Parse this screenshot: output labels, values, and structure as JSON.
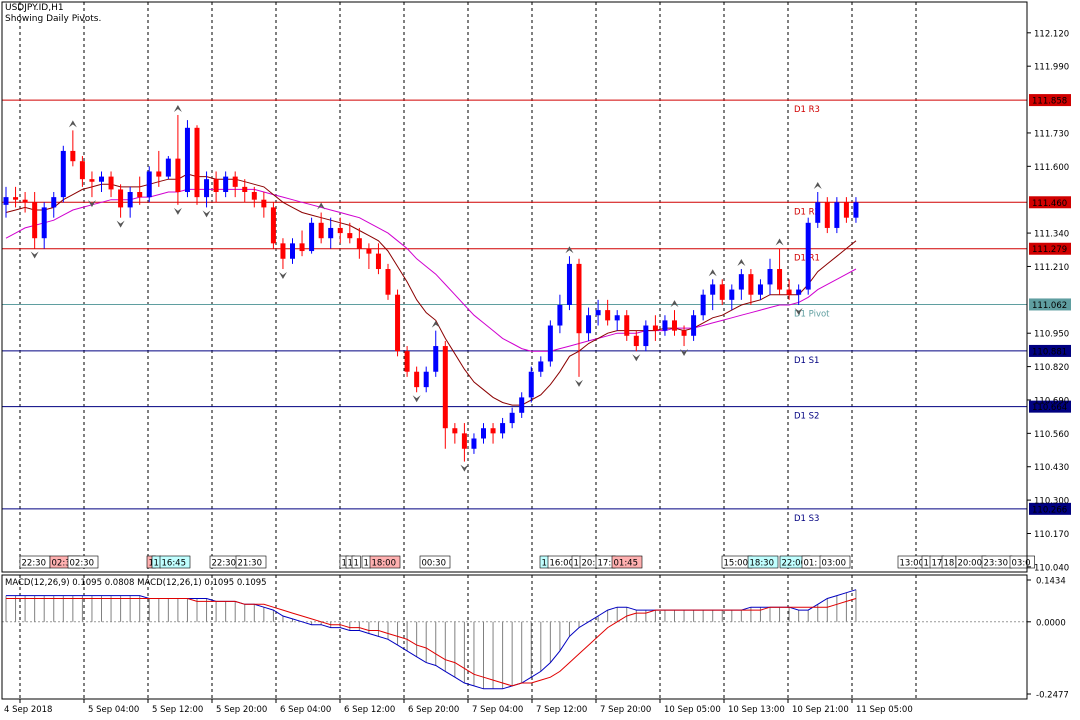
{
  "header": {
    "symbol": "USDJPY.ID,H1",
    "subtitle": "Showing Daily Pivots."
  },
  "colors": {
    "bull": "#0000ff",
    "bear": "#ff0000",
    "ma_fast": "#8b0000",
    "ma_slow": "#d000d0",
    "resistance": "#d00000",
    "support": "#000080",
    "pivot": "#5f9ea0",
    "grid": "#000000",
    "macd_hist": "#808080",
    "macd_signal": "#e00000",
    "macd_main": "#0000c0"
  },
  "chart_data": [
    {
      "type": "candlestick",
      "symbol": "USDJPY.ID",
      "timeframe": "H1",
      "ylim": [
        110.02,
        112.24
      ],
      "y_ticks": [
        112.12,
        111.99,
        111.73,
        111.6,
        111.34,
        111.21,
        110.95,
        110.82,
        110.69,
        110.56,
        110.43,
        110.3,
        110.17,
        110.04
      ],
      "x_tick_labels": [
        "4 Sep 2018",
        "5 Sep 04:00",
        "5 Sep 12:00",
        "5 Sep 20:00",
        "6 Sep 04:00",
        "6 Sep 12:00",
        "6 Sep 20:00",
        "7 Sep 04:00",
        "7 Sep 12:00",
        "7 Sep 20:00",
        "10 Sep 05:00",
        "10 Sep 13:00",
        "10 Sep 21:00",
        "11 Sep 05:00"
      ],
      "pivots": [
        {
          "name": "D1 R3",
          "value": 111.858,
          "label": "111.858",
          "kind": "resistance"
        },
        {
          "name": "D1 R2",
          "value": 111.46,
          "label": "111.460",
          "kind": "resistance"
        },
        {
          "name": "D1 R1",
          "value": 111.279,
          "label": "111.279",
          "kind": "resistance"
        },
        {
          "name": "D1 Pivot",
          "value": 111.062,
          "label": "111.062",
          "kind": "pivot"
        },
        {
          "name": "D1 S1",
          "value": 110.881,
          "label": "110.881",
          "kind": "support"
        },
        {
          "name": "D1 S2",
          "value": 110.664,
          "label": "110.664",
          "kind": "support"
        },
        {
          "name": "D1 S3",
          "value": 110.266,
          "label": "110.266",
          "kind": "support"
        }
      ],
      "session_labels": [
        {
          "text": "22:30",
          "color": "#ffffff"
        },
        {
          "text": "02:30",
          "color": "#ffb0b0"
        },
        {
          "text": "02:30",
          "color": "#ffffff"
        },
        {
          "text": "1",
          "color": "#ffb0b0"
        },
        {
          "text": "1",
          "color": "#c0ffff"
        },
        {
          "text": "16:45",
          "color": "#c0ffff"
        },
        {
          "text": "22:30",
          "color": "#ffffff"
        },
        {
          "text": "21:30",
          "color": "#ffffff"
        },
        {
          "text": "1",
          "color": "#ffffff"
        },
        {
          "text": "1",
          "color": "#ffffff"
        },
        {
          "text": "1",
          "color": "#ffffff"
        },
        {
          "text": "1",
          "color": "#ffffff"
        },
        {
          "text": "18:00",
          "color": "#ffb0b0"
        },
        {
          "text": "00:30",
          "color": "#ffffff"
        },
        {
          "text": "1",
          "color": "#c0ffff"
        },
        {
          "text": "16:00",
          "color": "#ffffff"
        },
        {
          "text": "1",
          "color": "#ffffff"
        },
        {
          "text": "20:",
          "color": "#ffffff"
        },
        {
          "text": "17:",
          "color": "#ffffff"
        },
        {
          "text": "01:45",
          "color": "#ffb0b0"
        },
        {
          "text": "15:00",
          "color": "#ffffff"
        },
        {
          "text": "18:30",
          "color": "#c0ffff"
        },
        {
          "text": "22:00",
          "color": "#c0ffff"
        },
        {
          "text": "01:",
          "color": "#ffffff"
        },
        {
          "text": "03:00",
          "color": "#ffffff"
        },
        {
          "text": "13:00",
          "color": "#ffffff"
        },
        {
          "text": "1",
          "color": "#ffffff"
        },
        {
          "text": "17",
          "color": "#ffffff"
        },
        {
          "text": "18",
          "color": "#ffffff"
        },
        {
          "text": "20:00",
          "color": "#ffffff"
        },
        {
          "text": "23:30",
          "color": "#ffffff"
        },
        {
          "text": "03:0",
          "color": "#ffffff"
        }
      ],
      "candles": [
        [
          111.45,
          111.52,
          111.4,
          111.48
        ],
        [
          111.48,
          111.52,
          111.44,
          111.47
        ],
        [
          111.47,
          111.5,
          111.42,
          111.46
        ],
        [
          111.46,
          111.5,
          111.28,
          111.32
        ],
        [
          111.32,
          111.46,
          111.28,
          111.44
        ],
        [
          111.44,
          111.5,
          111.4,
          111.48
        ],
        [
          111.48,
          111.68,
          111.46,
          111.66
        ],
        [
          111.66,
          111.74,
          111.6,
          111.62
        ],
        [
          111.62,
          111.64,
          111.52,
          111.55
        ],
        [
          111.55,
          111.58,
          111.48,
          111.54
        ],
        [
          111.54,
          111.58,
          111.5,
          111.56
        ],
        [
          111.56,
          111.58,
          111.48,
          111.51
        ],
        [
          111.51,
          111.53,
          111.4,
          111.44
        ],
        [
          111.44,
          111.52,
          111.4,
          111.5
        ],
        [
          111.5,
          111.56,
          111.45,
          111.48
        ],
        [
          111.48,
          111.6,
          111.46,
          111.58
        ],
        [
          111.58,
          111.66,
          111.52,
          111.56
        ],
        [
          111.56,
          111.64,
          111.55,
          111.63
        ],
        [
          111.63,
          111.8,
          111.45,
          111.5
        ],
        [
          111.5,
          111.78,
          111.48,
          111.75
        ],
        [
          111.75,
          111.76,
          111.45,
          111.48
        ],
        [
          111.48,
          111.58,
          111.44,
          111.55
        ],
        [
          111.55,
          111.58,
          111.46,
          111.5
        ],
        [
          111.5,
          111.58,
          111.48,
          111.56
        ],
        [
          111.56,
          111.58,
          111.48,
          111.52
        ],
        [
          111.52,
          111.55,
          111.46,
          111.5
        ],
        [
          111.5,
          111.52,
          111.44,
          111.47
        ],
        [
          111.47,
          111.5,
          111.4,
          111.44
        ],
        [
          111.44,
          111.46,
          111.28,
          111.3
        ],
        [
          111.3,
          111.32,
          111.2,
          111.24
        ],
        [
          111.24,
          111.32,
          111.22,
          111.3
        ],
        [
          111.3,
          111.35,
          111.25,
          111.27
        ],
        [
          111.27,
          111.4,
          111.26,
          111.38
        ],
        [
          111.38,
          111.42,
          111.3,
          111.32
        ],
        [
          111.32,
          111.4,
          111.28,
          111.36
        ],
        [
          111.36,
          111.4,
          111.3,
          111.34
        ],
        [
          111.34,
          111.38,
          111.3,
          111.32
        ],
        [
          111.32,
          111.36,
          111.24,
          111.28
        ],
        [
          111.28,
          111.3,
          111.2,
          111.26
        ],
        [
          111.26,
          111.3,
          111.18,
          111.2
        ],
        [
          111.2,
          111.22,
          111.08,
          111.1
        ],
        [
          111.1,
          111.12,
          110.86,
          110.88
        ],
        [
          110.88,
          110.9,
          110.78,
          110.8
        ],
        [
          110.8,
          110.82,
          110.72,
          110.74
        ],
        [
          110.74,
          110.82,
          110.72,
          110.8
        ],
        [
          110.8,
          110.96,
          110.78,
          110.9
        ],
        [
          110.9,
          110.92,
          110.5,
          110.58
        ],
        [
          110.58,
          110.6,
          110.52,
          110.56
        ],
        [
          110.56,
          110.6,
          110.45,
          110.5
        ],
        [
          110.5,
          110.56,
          110.48,
          110.54
        ],
        [
          110.54,
          110.6,
          110.52,
          110.58
        ],
        [
          110.58,
          110.6,
          110.52,
          110.56
        ],
        [
          110.56,
          110.62,
          110.54,
          110.6
        ],
        [
          110.6,
          110.66,
          110.58,
          110.64
        ],
        [
          110.64,
          110.72,
          110.62,
          110.7
        ],
        [
          110.7,
          110.82,
          110.68,
          110.8
        ],
        [
          110.8,
          110.86,
          110.78,
          110.84
        ],
        [
          110.84,
          111.0,
          110.82,
          110.98
        ],
        [
          110.98,
          111.1,
          110.95,
          111.06
        ],
        [
          111.06,
          111.25,
          111.04,
          111.22
        ],
        [
          111.22,
          111.24,
          110.78,
          110.95
        ],
        [
          110.95,
          111.05,
          110.92,
          111.02
        ],
        [
          111.02,
          111.08,
          110.98,
          111.04
        ],
        [
          111.04,
          111.08,
          110.98,
          111.0
        ],
        [
          111.0,
          111.04,
          110.96,
          111.02
        ],
        [
          111.02,
          111.04,
          110.92,
          110.94
        ],
        [
          110.94,
          110.96,
          110.88,
          110.9
        ],
        [
          110.9,
          111.0,
          110.88,
          110.98
        ],
        [
          110.98,
          111.02,
          110.92,
          110.96
        ],
        [
          110.96,
          111.02,
          110.94,
          111.0
        ],
        [
          111.0,
          111.04,
          110.94,
          110.96
        ],
        [
          110.96,
          110.98,
          110.9,
          110.94
        ],
        [
          110.94,
          111.04,
          110.92,
          111.02
        ],
        [
          111.02,
          111.12,
          111.0,
          111.1
        ],
        [
          111.1,
          111.16,
          111.04,
          111.14
        ],
        [
          111.14,
          111.16,
          111.06,
          111.08
        ],
        [
          111.08,
          111.14,
          111.04,
          111.12
        ],
        [
          111.12,
          111.2,
          111.08,
          111.18
        ],
        [
          111.18,
          111.2,
          111.06,
          111.1
        ],
        [
          111.1,
          111.16,
          111.08,
          111.14
        ],
        [
          111.14,
          111.24,
          111.1,
          111.2
        ],
        [
          111.2,
          111.28,
          111.1,
          111.12
        ],
        [
          111.12,
          111.16,
          111.08,
          111.1
        ],
        [
          111.1,
          111.14,
          111.06,
          111.12
        ],
        [
          111.12,
          111.4,
          111.1,
          111.38
        ],
        [
          111.38,
          111.5,
          111.36,
          111.46
        ],
        [
          111.46,
          111.48,
          111.34,
          111.36
        ],
        [
          111.36,
          111.48,
          111.34,
          111.46
        ],
        [
          111.46,
          111.48,
          111.38,
          111.4
        ],
        [
          111.4,
          111.48,
          111.38,
          111.46
        ]
      ],
      "ma_fast": [
        111.42,
        111.43,
        111.44,
        111.43,
        111.43,
        111.44,
        111.47,
        111.49,
        111.51,
        111.52,
        111.53,
        111.53,
        111.52,
        111.52,
        111.52,
        111.53,
        111.54,
        111.55,
        111.55,
        111.57,
        111.56,
        111.56,
        111.55,
        111.55,
        111.55,
        111.54,
        111.53,
        111.52,
        111.49,
        111.46,
        111.44,
        111.42,
        111.41,
        111.4,
        111.39,
        111.38,
        111.37,
        111.35,
        111.33,
        111.31,
        111.27,
        111.21,
        111.15,
        111.08,
        111.03,
        111.0,
        110.93,
        110.87,
        110.81,
        110.76,
        110.73,
        110.7,
        110.68,
        110.67,
        110.67,
        110.69,
        110.71,
        110.75,
        110.8,
        110.86,
        110.88,
        110.91,
        110.93,
        110.95,
        110.96,
        110.96,
        110.96,
        110.96,
        110.96,
        110.97,
        110.97,
        110.96,
        110.97,
        110.99,
        111.01,
        111.02,
        111.04,
        111.06,
        111.07,
        111.08,
        111.1,
        111.1,
        111.1,
        111.1,
        111.14,
        111.19,
        111.22,
        111.25,
        111.28,
        111.31
      ],
      "ma_slow": [
        111.32,
        111.34,
        111.36,
        111.37,
        111.38,
        111.39,
        111.41,
        111.43,
        111.44,
        111.45,
        111.46,
        111.47,
        111.47,
        111.47,
        111.48,
        111.48,
        111.49,
        111.5,
        111.5,
        111.51,
        111.51,
        111.51,
        111.51,
        111.51,
        111.51,
        111.51,
        111.51,
        111.5,
        111.49,
        111.48,
        111.47,
        111.46,
        111.45,
        111.44,
        111.43,
        111.42,
        111.41,
        111.4,
        111.38,
        111.36,
        111.34,
        111.31,
        111.28,
        111.24,
        111.21,
        111.18,
        111.14,
        111.1,
        111.06,
        111.02,
        110.99,
        110.96,
        110.93,
        110.91,
        110.89,
        110.88,
        110.88,
        110.88,
        110.89,
        110.9,
        110.91,
        110.92,
        110.93,
        110.94,
        110.95,
        110.95,
        110.95,
        110.96,
        110.96,
        110.96,
        110.97,
        110.97,
        110.97,
        110.98,
        110.99,
        111.0,
        111.01,
        111.02,
        111.03,
        111.04,
        111.05,
        111.06,
        111.06,
        111.07,
        111.09,
        111.12,
        111.14,
        111.16,
        111.18,
        111.2
      ]
    },
    {
      "type": "macd",
      "label": "MACD(12,26,9) 0.1095 0.0808 MACD(12,26,1) 0.1095 0.1095",
      "ylim": [
        -0.2477,
        0.1434
      ],
      "y_ticks": [
        0.1434,
        0.0,
        -0.2477
      ],
      "y_tick_labels": [
        "0.1434",
        "0.0000",
        "-0.2477"
      ],
      "hist": [
        0.09,
        0.09,
        0.09,
        0.09,
        0.09,
        0.09,
        0.09,
        0.09,
        0.09,
        0.09,
        0.09,
        0.09,
        0.09,
        0.09,
        0.09,
        0.08,
        0.08,
        0.08,
        0.08,
        0.08,
        0.08,
        0.08,
        0.07,
        0.07,
        0.07,
        0.06,
        0.06,
        0.05,
        0.04,
        0.02,
        0.01,
        0.0,
        -0.01,
        -0.01,
        -0.02,
        -0.02,
        -0.03,
        -0.03,
        -0.04,
        -0.05,
        -0.06,
        -0.08,
        -0.1,
        -0.12,
        -0.14,
        -0.15,
        -0.17,
        -0.19,
        -0.21,
        -0.22,
        -0.23,
        -0.23,
        -0.23,
        -0.22,
        -0.21,
        -0.19,
        -0.17,
        -0.14,
        -0.1,
        -0.05,
        -0.02,
        0.0,
        0.02,
        0.04,
        0.05,
        0.05,
        0.04,
        0.04,
        0.04,
        0.04,
        0.04,
        0.04,
        0.04,
        0.04,
        0.04,
        0.04,
        0.04,
        0.04,
        0.05,
        0.05,
        0.05,
        0.05,
        0.05,
        0.04,
        0.04,
        0.06,
        0.08,
        0.09,
        0.1,
        0.11
      ],
      "signal": [
        0.08,
        0.08,
        0.08,
        0.08,
        0.08,
        0.08,
        0.08,
        0.08,
        0.08,
        0.08,
        0.08,
        0.08,
        0.08,
        0.08,
        0.08,
        0.08,
        0.08,
        0.08,
        0.08,
        0.08,
        0.07,
        0.07,
        0.07,
        0.07,
        0.07,
        0.06,
        0.06,
        0.06,
        0.05,
        0.04,
        0.03,
        0.02,
        0.01,
        0.0,
        -0.01,
        -0.01,
        -0.02,
        -0.02,
        -0.03,
        -0.03,
        -0.04,
        -0.05,
        -0.06,
        -0.08,
        -0.09,
        -0.11,
        -0.13,
        -0.14,
        -0.16,
        -0.18,
        -0.19,
        -0.2,
        -0.21,
        -0.22,
        -0.21,
        -0.21,
        -0.2,
        -0.19,
        -0.17,
        -0.14,
        -0.11,
        -0.08,
        -0.05,
        -0.02,
        0.0,
        0.02,
        0.03,
        0.03,
        0.04,
        0.04,
        0.04,
        0.04,
        0.04,
        0.04,
        0.04,
        0.04,
        0.04,
        0.04,
        0.04,
        0.04,
        0.05,
        0.05,
        0.05,
        0.05,
        0.05,
        0.05,
        0.05,
        0.06,
        0.07,
        0.08
      ],
      "main": [
        0.09,
        0.09,
        0.09,
        0.09,
        0.09,
        0.09,
        0.09,
        0.09,
        0.09,
        0.09,
        0.09,
        0.09,
        0.09,
        0.09,
        0.09,
        0.08,
        0.08,
        0.08,
        0.08,
        0.08,
        0.08,
        0.08,
        0.07,
        0.07,
        0.07,
        0.06,
        0.06,
        0.05,
        0.04,
        0.02,
        0.01,
        0.0,
        -0.01,
        -0.01,
        -0.02,
        -0.02,
        -0.03,
        -0.03,
        -0.04,
        -0.05,
        -0.06,
        -0.08,
        -0.1,
        -0.12,
        -0.14,
        -0.15,
        -0.17,
        -0.19,
        -0.21,
        -0.22,
        -0.23,
        -0.23,
        -0.23,
        -0.22,
        -0.21,
        -0.19,
        -0.17,
        -0.14,
        -0.1,
        -0.05,
        -0.02,
        0.0,
        0.02,
        0.04,
        0.05,
        0.05,
        0.04,
        0.04,
        0.04,
        0.04,
        0.04,
        0.04,
        0.04,
        0.04,
        0.04,
        0.04,
        0.04,
        0.04,
        0.05,
        0.05,
        0.05,
        0.05,
        0.05,
        0.04,
        0.04,
        0.06,
        0.08,
        0.09,
        0.1,
        0.11
      ]
    }
  ]
}
